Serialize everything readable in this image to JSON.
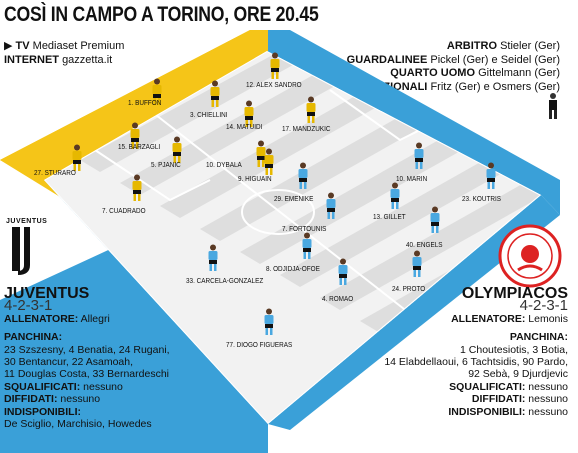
{
  "title": "COSÌ IN CAMPO A TORINO, ORE 20.45",
  "broadcast": {
    "tv_label": "TV",
    "tv_value": "Mediaset Premium",
    "internet_label": "INTERNET",
    "internet_value": "gazzetta.it"
  },
  "officials": {
    "arbitro_label": "ARBITRO",
    "arbitro_value": "Stieler (Ger)",
    "guardalinee_label": "GUARDALINEE",
    "guardalinee_value": "Pickel (Ger) e Seidel (Ger)",
    "quarto_label": "QUARTO UOMO",
    "quarto_value": "Gittelmann (Ger)",
    "addizionali_label": "ADDIZIONALI",
    "addizionali_value": "Fritz (Ger) e Osmers (Ger)"
  },
  "colors": {
    "juventus_side": "#f5c518",
    "olympiacos_side": "#3aa0d8",
    "pitch_light": "#f2f2f2",
    "pitch_dark": "#dcdcdc"
  },
  "juventus": {
    "logo_text": "JUVENTUS",
    "name": "JUVENTUS",
    "formation": "4-2-3-1",
    "coach_label": "ALLENATORE:",
    "coach": "Allegri",
    "bench_label": "PANCHINA:",
    "bench_lines": [
      "23 Szszesny, 4 Benatia, 24 Rugani,",
      "30 Bentancur, 22 Asamoah,",
      "11 Douglas Costa, 33 Bernardeschi"
    ],
    "squalificati_label": "SQUALIFICATI:",
    "squalificati": "nessuno",
    "diffidati_label": "DIFFIDATI:",
    "diffidati": "nessuno",
    "indisponibili_label": "INDISPONIBILI:",
    "indisponibili": "De Sciglio, Marchisio, Howedes",
    "players": [
      "1. BUFFON",
      "12. ALEX SANDRO",
      "3. CHIELLINI",
      "15. BARZAGLI",
      "14. MATUIDI",
      "17. MANDZUKIC",
      "5. PJANIC",
      "10. DYBALA",
      "27. STURARO",
      "9. HIGUAIN",
      "7. CUADRADO"
    ]
  },
  "olympiacos": {
    "name": "OLYMPIACOS",
    "formation": "4-2-3-1",
    "coach_label": "ALLENATORE:",
    "coach": "Lemonis",
    "bench_label": "PANCHINA:",
    "bench_lines": [
      "1 Choutesiotis, 3 Botia,",
      "14 Elabdellaoui, 6 Tachtsidis, 90 Pardo,",
      "92 Sebà, 9 Djurdjevic"
    ],
    "squalificati_label": "SQUALIFICATI:",
    "squalificati": "nessuno",
    "diffidati_label": "DIFFIDATI:",
    "diffidati": "nessuno",
    "indisponibili_label": "INDISPONIBILI:",
    "indisponibili": "nessuno",
    "players": [
      "10. MARIN",
      "29. EMENIKE",
      "23. KOUTRIS",
      "7. FORTOUNIS",
      "13. GILLET",
      "40. ENGELS",
      "8. ODJIDJA-OFOE",
      "33. CARCELA-GONZALEZ",
      "4. ROMAO",
      "24. PROTO",
      "77. DIOGO FIGUERAS"
    ]
  }
}
